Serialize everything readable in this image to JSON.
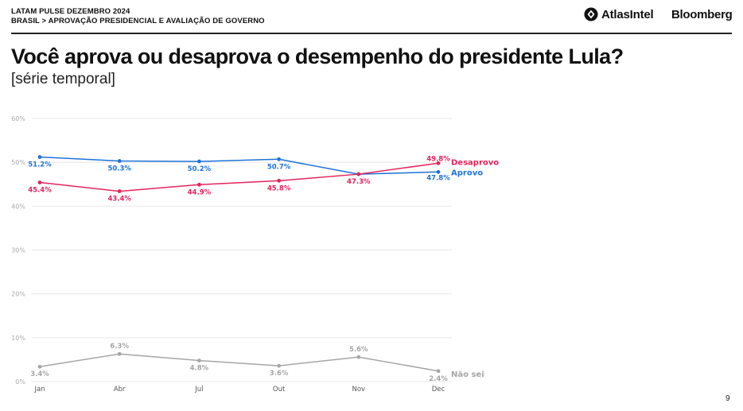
{
  "header": {
    "line1": "LATAM PULSE DEZEMBRO 2024",
    "line2": "BRASIL > APROVAÇÃO PRESIDENCIAL E AVALIAÇÃO DE GOVERNO",
    "brand_atlas": "AtlasIntel",
    "brand_bloomberg": "Bloomberg"
  },
  "title": "Você aprova ou desaprova o desempenho do presidente Lula?",
  "subtitle": "[série temporal]",
  "page_number": "9",
  "chart_data": {
    "type": "line",
    "categories": [
      "Jan",
      "Abr",
      "Jul",
      "Out",
      "Nov",
      "Dec"
    ],
    "ylim": [
      0,
      60
    ],
    "yticks": [
      0,
      10,
      20,
      30,
      40,
      50,
      60
    ],
    "ytick_labels": [
      "0%",
      "10%",
      "20%",
      "30%",
      "40%",
      "50%",
      "60%"
    ],
    "grid": true,
    "legend": "end-of-line labels",
    "series": [
      {
        "name": "Aprovo",
        "color": "#1e73d8",
        "values": [
          51.2,
          50.3,
          50.2,
          50.7,
          47.3,
          47.8
        ],
        "labels": [
          "51.2%",
          "50.3%",
          "50.2%",
          "50.7%",
          "",
          "47.8%"
        ]
      },
      {
        "name": "Desaprovo",
        "color": "#e3245d",
        "values": [
          45.4,
          43.4,
          44.9,
          45.8,
          47.3,
          49.8
        ],
        "labels": [
          "45.4%",
          "43.4%",
          "44.9%",
          "45.8%",
          "47.3%",
          "49.8%"
        ]
      },
      {
        "name": "Não sei",
        "color": "#a6a6a6",
        "values": [
          3.4,
          6.3,
          4.8,
          3.6,
          5.6,
          2.4
        ],
        "labels": [
          "3.4%",
          "6.3%",
          "4.8%",
          "3.6%",
          "5.6%",
          "2.4%"
        ]
      }
    ]
  }
}
